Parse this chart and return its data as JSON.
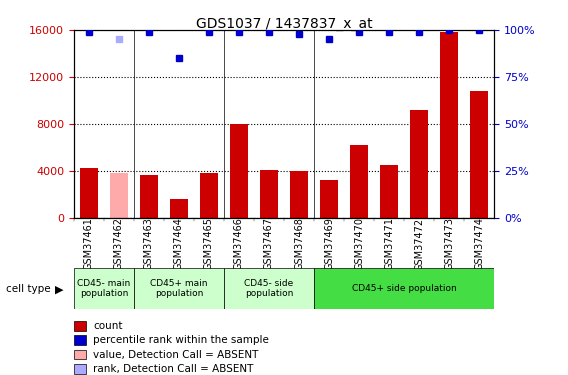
{
  "title": "GDS1037 / 1437837_x_at",
  "samples": [
    "GSM37461",
    "GSM37462",
    "GSM37463",
    "GSM37464",
    "GSM37465",
    "GSM37466",
    "GSM37467",
    "GSM37468",
    "GSM37469",
    "GSM37470",
    "GSM37471",
    "GSM37472",
    "GSM37473",
    "GSM37474"
  ],
  "counts": [
    4200,
    3800,
    3650,
    1600,
    3800,
    8000,
    4050,
    4000,
    3200,
    6200,
    4500,
    9200,
    15800,
    10800
  ],
  "absent_mask": [
    false,
    true,
    false,
    false,
    false,
    false,
    false,
    false,
    false,
    false,
    false,
    false,
    false,
    false
  ],
  "percentile_ranks": [
    99,
    95,
    99,
    85,
    99,
    99,
    99,
    98,
    95,
    99,
    99,
    99,
    100,
    100
  ],
  "absent_rank_mask": [
    false,
    true,
    false,
    false,
    false,
    false,
    false,
    false,
    false,
    false,
    false,
    false,
    false,
    false
  ],
  "ylim_left": [
    0,
    16000
  ],
  "ylim_right": [
    0,
    100
  ],
  "yticks_left": [
    0,
    4000,
    8000,
    12000,
    16000
  ],
  "yticks_right": [
    0,
    25,
    50,
    75,
    100
  ],
  "bar_color_normal": "#cc0000",
  "bar_color_absent": "#ffaaaa",
  "dot_color_normal": "#0000cc",
  "dot_color_absent": "#aaaaff",
  "cell_type_label": "cell type",
  "legend_items": [
    {
      "color": "#cc0000",
      "label": "count"
    },
    {
      "color": "#0000cc",
      "label": "percentile rank within the sample"
    },
    {
      "color": "#ffaaaa",
      "label": "value, Detection Call = ABSENT"
    },
    {
      "color": "#aaaaff",
      "label": "rank, Detection Call = ABSENT"
    }
  ],
  "tick_color_left": "#cc0000",
  "tick_color_right": "#0000cc",
  "group_configs": [
    {
      "label": "CD45- main\npopulation",
      "indices": [
        0,
        1
      ],
      "color": "#ccffcc"
    },
    {
      "label": "CD45+ main\npopulation",
      "indices": [
        2,
        3,
        4
      ],
      "color": "#ccffcc"
    },
    {
      "label": "CD45- side\npopulation",
      "indices": [
        5,
        6,
        7
      ],
      "color": "#ccffcc"
    },
    {
      "label": "CD45+ side population",
      "indices": [
        8,
        9,
        10,
        11,
        12,
        13
      ],
      "color": "#44dd44"
    }
  ],
  "group_boundaries": [
    1.5,
    4.5,
    7.5
  ]
}
